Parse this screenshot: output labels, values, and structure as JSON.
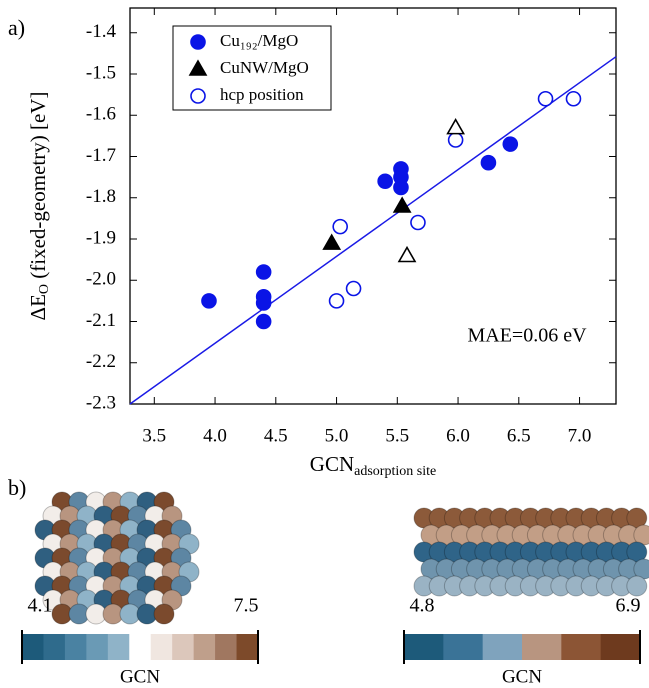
{
  "chart_data": {
    "type": "scatter",
    "panel_label": "a)",
    "xlabel": [
      "GCN",
      "adsorption site"
    ],
    "ylabel": [
      "ΔE",
      "O",
      " (fixed-geometry) [eV]"
    ],
    "xlim": [
      3.3,
      7.3
    ],
    "ylim": [
      -2.3,
      -1.34
    ],
    "xticks": [
      3.5,
      4.0,
      4.5,
      5.0,
      5.5,
      6.0,
      6.5,
      7.0
    ],
    "yticks": [
      -2.3,
      -2.2,
      -2.1,
      -2.0,
      -1.9,
      -1.8,
      -1.7,
      -1.6,
      -1.5,
      -1.4
    ],
    "legend": "upper left",
    "annotation": "MAE=0.06 eV",
    "annotation_color": "#1a1ae6",
    "series": [
      {
        "name": "Cu₁₉₂/MgO",
        "marker": "circle",
        "filled": true,
        "color": "#0a14e6",
        "x": [
          3.95,
          4.4,
          4.4,
          4.4,
          4.4,
          5.4,
          5.53,
          5.53,
          5.53,
          6.25,
          6.43
        ],
        "values": [
          -2.05,
          -1.98,
          -2.04,
          -2.055,
          -2.1,
          -1.76,
          -1.73,
          -1.75,
          -1.775,
          -1.715,
          -1.67
        ]
      },
      {
        "name": "CuNW/MgO",
        "marker": "triangle",
        "filled": true,
        "color": "#000000",
        "x": [
          4.96,
          5.54
        ],
        "values": [
          -1.91,
          -1.82
        ]
      },
      {
        "name": "hcp position",
        "marker": "circle",
        "filled": false,
        "color": "#0a14e6",
        "x": [
          5.03,
          5.0,
          5.14,
          5.67,
          5.98,
          6.72,
          6.95
        ],
        "values": [
          -1.87,
          -2.05,
          -2.02,
          -1.86,
          -1.66,
          -1.56,
          -1.56
        ]
      },
      {
        "marker": "triangle",
        "filled": false,
        "color": "#000000",
        "x": [
          5.98,
          5.58
        ],
        "values": [
          -1.63,
          -1.94
        ]
      }
    ],
    "fit": {
      "color": "#1a1ae6",
      "x": [
        3.3,
        7.3
      ],
      "values": [
        -2.3,
        -1.458
      ]
    }
  },
  "panel_b": {
    "label": "b)",
    "colorbars": [
      {
        "min": 4.1,
        "max": 7.5,
        "label": "GCN",
        "colors": [
          "#1d5a7a",
          "#2f6b8c",
          "#4a82a2",
          "#6a9ab5",
          "#8fb3c8",
          "#ffffff",
          "#f0e6e0",
          "#dcc7bb",
          "#bf9f8b",
          "#a07760",
          "#7d4a2a"
        ]
      },
      {
        "min": 4.8,
        "max": 6.9,
        "label": "GCN",
        "colors": [
          "#1d5a7a",
          "#3a7397",
          "#7fa3bd",
          "#b89580",
          "#8c5535",
          "#6e3a1e"
        ]
      }
    ]
  }
}
